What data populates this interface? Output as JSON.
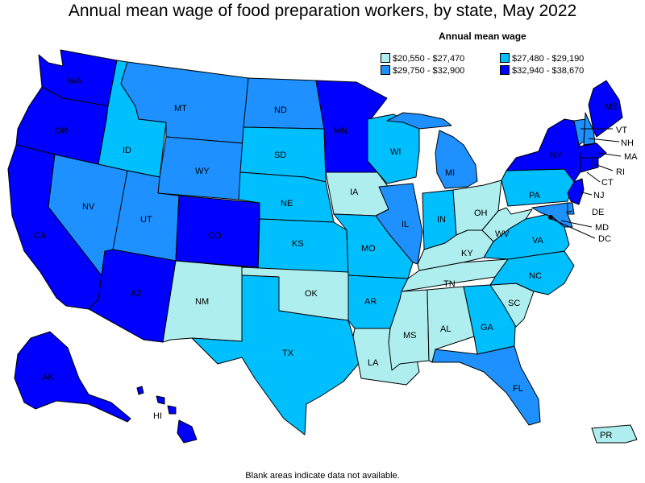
{
  "title": "Annual mean wage of food preparation workers, by state, May 2022",
  "footnote": "Blank areas indicate data not available.",
  "legend": {
    "title": "Annual mean wage",
    "items": [
      {
        "label": "$20,550 - $27,470",
        "color": "#afeeee"
      },
      {
        "label": "$27,480 - $29,190",
        "color": "#00bfff"
      },
      {
        "label": "$29,750 - $32,900",
        "color": "#1e90ff"
      },
      {
        "label": "$32,940 - $38,670",
        "color": "#0000ff"
      }
    ]
  },
  "states": {
    "WA": {
      "label": "WA",
      "tier": 3
    },
    "OR": {
      "label": "OR",
      "tier": 3
    },
    "CA": {
      "label": "CA",
      "tier": 3
    },
    "NV": {
      "label": "NV",
      "tier": 2
    },
    "ID": {
      "label": "ID",
      "tier": 1
    },
    "MT": {
      "label": "MT",
      "tier": 2
    },
    "WY": {
      "label": "WY",
      "tier": 2
    },
    "UT": {
      "label": "UT",
      "tier": 2
    },
    "AZ": {
      "label": "AZ",
      "tier": 3
    },
    "CO": {
      "label": "CO",
      "tier": 3
    },
    "NM": {
      "label": "NM",
      "tier": 0
    },
    "ND": {
      "label": "ND",
      "tier": 2
    },
    "SD": {
      "label": "SD",
      "tier": 1
    },
    "NE": {
      "label": "NE",
      "tier": 1
    },
    "KS": {
      "label": "KS",
      "tier": 1
    },
    "OK": {
      "label": "OK",
      "tier": 0
    },
    "TX": {
      "label": "TX",
      "tier": 1
    },
    "MN": {
      "label": "MN",
      "tier": 3
    },
    "IA": {
      "label": "IA",
      "tier": 0
    },
    "MO": {
      "label": "MO",
      "tier": 1
    },
    "AR": {
      "label": "AR",
      "tier": 1
    },
    "LA": {
      "label": "LA",
      "tier": 0
    },
    "WI": {
      "label": "WI",
      "tier": 1
    },
    "IL": {
      "label": "IL",
      "tier": 2
    },
    "MI": {
      "label": "MI",
      "tier": 2
    },
    "IN": {
      "label": "IN",
      "tier": 1
    },
    "OH": {
      "label": "OH",
      "tier": 0
    },
    "KY": {
      "label": "KY",
      "tier": 0
    },
    "TN": {
      "label": "TN",
      "tier": 0
    },
    "MS": {
      "label": "MS",
      "tier": 0
    },
    "AL": {
      "label": "AL",
      "tier": 0
    },
    "GA": {
      "label": "GA",
      "tier": 1
    },
    "FL": {
      "label": "FL",
      "tier": 2
    },
    "SC": {
      "label": "SC",
      "tier": 0
    },
    "NC": {
      "label": "NC",
      "tier": 1
    },
    "VA": {
      "label": "VA",
      "tier": 1
    },
    "WV": {
      "label": "WV",
      "tier": 0
    },
    "PA": {
      "label": "PA",
      "tier": 1
    },
    "NY": {
      "label": "NY",
      "tier": 3
    },
    "VT": {
      "label": "VT",
      "tier": 2
    },
    "NH": {
      "label": "NH",
      "tier": 2
    },
    "ME": {
      "label": "ME",
      "tier": 3
    },
    "MA": {
      "label": "MA",
      "tier": 3
    },
    "RI": {
      "label": "RI",
      "tier": 3
    },
    "CT": {
      "label": "CT",
      "tier": 3
    },
    "NJ": {
      "label": "NJ",
      "tier": 3
    },
    "DE": {
      "label": "DE",
      "tier": 2
    },
    "MD": {
      "label": "MD",
      "tier": 2
    },
    "DC": {
      "label": "DC",
      "tier": 3
    },
    "AK": {
      "label": "AK",
      "tier": 3
    },
    "HI": {
      "label": "HI",
      "tier": 3
    },
    "PR": {
      "label": "PR",
      "tier": 0
    }
  }
}
